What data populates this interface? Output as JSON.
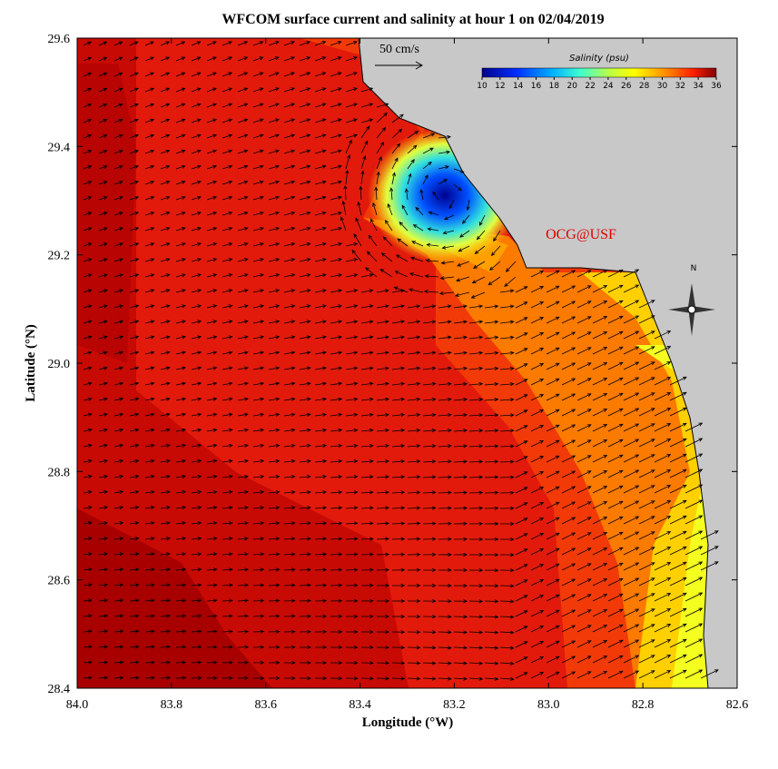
{
  "chart_data": {
    "type": "map",
    "title": "WFCOM surface current and salinity at hour 1 on 02/04/2019",
    "x_label": "Longitude (°W)",
    "y_label": "Latitude (°N)",
    "xlim": [
      84.0,
      82.6
    ],
    "xticks": [
      {
        "value": 84.0,
        "label": "84.0"
      },
      83.8,
      83.6,
      83.4,
      83.2,
      {
        "value": 83.0,
        "label": "83.0"
      },
      82.8,
      82.6
    ],
    "ylim": [
      28.4,
      29.6
    ],
    "yticks": [
      28.4,
      28.6,
      28.8,
      {
        "value": 29.0,
        "label": "29.0"
      },
      29.2,
      29.4,
      29.6
    ],
    "colorbar": {
      "title": "Salinity (psu)",
      "lim": [
        10,
        36
      ],
      "ticks": [
        10,
        12,
        14,
        16,
        18,
        20,
        22,
        24,
        26,
        28,
        30,
        32,
        34,
        36
      ]
    },
    "scale_label": "50 cm/s",
    "credit": "OCG@USF",
    "north_label": "N"
  }
}
